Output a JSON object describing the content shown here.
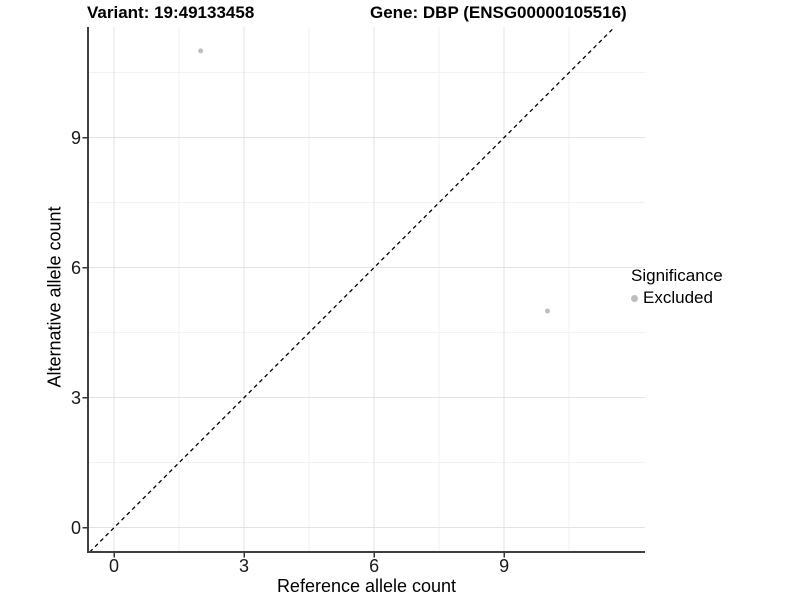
{
  "figure": {
    "title_left": "Variant: 19:49133458",
    "title_right": "Gene: DBP (ENSG00000105516)"
  },
  "axes": {
    "x_label": "Reference allele count",
    "y_label": "Alternative allele count"
  },
  "legend": {
    "title": "Significance",
    "items": [
      {
        "label": "Excluded",
        "color": "#bebebe",
        "marker": "circle"
      }
    ]
  },
  "colors": {
    "background": "#ffffff",
    "point": "#bebebe",
    "grid_major": "#e3e3e3",
    "grid_minor": "#f2f2f2",
    "axis_line": "#3f3f3f",
    "tick_mark": "#333333",
    "reference_line": "#000000",
    "text": "#000000"
  },
  "chart_data": {
    "type": "scatter",
    "title": "Variant: 19:49133458 | Gene: DBP (ENSG00000105516)",
    "xlabel": "Reference allele count",
    "ylabel": "Alternative allele count",
    "xlim": [
      -0.6,
      12.25
    ],
    "ylim": [
      -0.56,
      11.55
    ],
    "x_ticks": [
      0,
      3,
      6,
      9
    ],
    "y_ticks": [
      0,
      3,
      6,
      9
    ],
    "x_minor_gridlines": [
      1.5,
      4.5,
      7.5,
      10.5
    ],
    "y_minor_gridlines": [
      1.5,
      4.5,
      7.5,
      10.5
    ],
    "grid": "major+minor",
    "legend_position": "right",
    "series": [
      {
        "name": "Excluded",
        "color": "#bebebe",
        "marker": "circle",
        "point_radius": 2.5,
        "points": [
          {
            "x": 2,
            "y": 11
          },
          {
            "x": 10,
            "y": 5
          }
        ]
      }
    ],
    "reference_line": {
      "type": "identity",
      "slope": 1,
      "intercept": 0,
      "style": "dashed",
      "color": "#000000"
    }
  }
}
